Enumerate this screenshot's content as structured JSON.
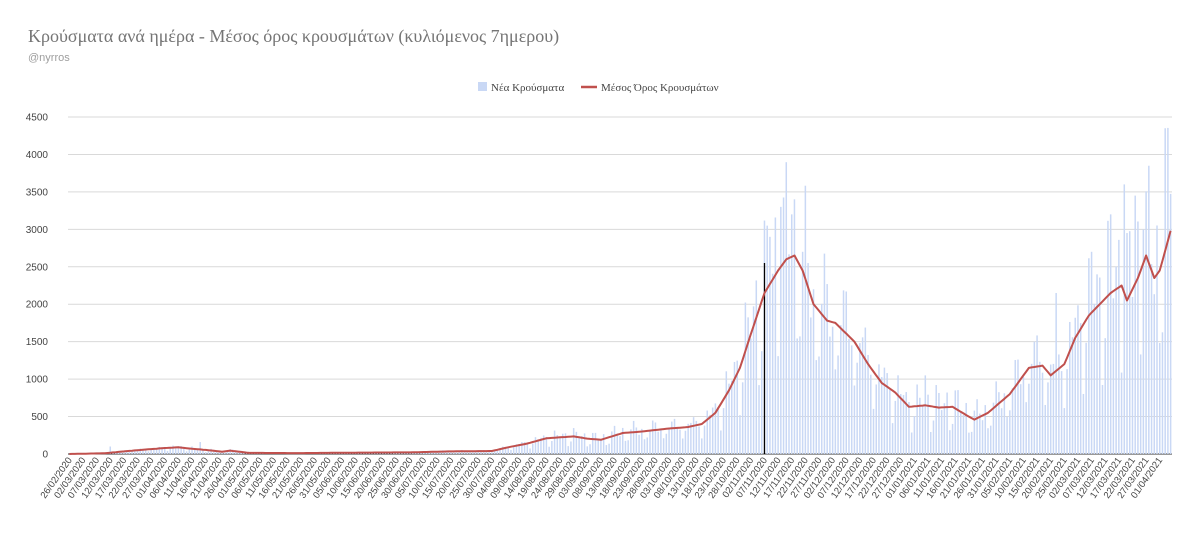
{
  "chart_data": {
    "type": "bar+line",
    "title": "Κρούσματα ανά ημέρα - Μέσος όρος κρουσμάτων (κυλιόμενος 7ημερου)",
    "subtitle": "@nyrros",
    "legend": {
      "placement": "top-center",
      "entries": [
        "Νέα Κρούσματα",
        "Μέσος Όρος Κρουσμάτων"
      ]
    },
    "colors": {
      "bars": "#c9d8f5",
      "line": "#c0504d",
      "grid": "#d9d9d9",
      "marker": "#000000"
    },
    "ylim": [
      0,
      4500
    ],
    "yticks": [
      0,
      500,
      1000,
      1500,
      2000,
      2500,
      3000,
      3500,
      4000,
      4500
    ],
    "date_start": "26/02/2020",
    "date_end": "05/04/2021",
    "xtick_labels": [
      "26/02/2020",
      "02/03/2020",
      "07/03/2020",
      "12/03/2020",
      "17/03/2020",
      "22/03/2020",
      "27/03/2020",
      "01/04/2020",
      "06/04/2020",
      "11/04/2020",
      "16/04/2020",
      "21/04/2020",
      "26/04/2020",
      "01/05/2020",
      "06/05/2020",
      "11/05/2020",
      "16/05/2020",
      "21/05/2020",
      "26/05/2020",
      "31/05/2020",
      "05/06/2020",
      "10/06/2020",
      "15/06/2020",
      "20/06/2020",
      "25/06/2020",
      "30/06/2020",
      "05/07/2020",
      "10/07/2020",
      "15/07/2020",
      "20/07/2020",
      "25/07/2020",
      "30/07/2020",
      "04/08/2020",
      "09/08/2020",
      "14/08/2020",
      "19/08/2020",
      "24/08/2020",
      "29/08/2020",
      "03/09/2020",
      "08/09/2020",
      "13/09/2020",
      "18/09/2020",
      "23/09/2020",
      "28/09/2020",
      "03/10/2020",
      "08/10/2020",
      "13/10/2020",
      "18/10/2020",
      "23/10/2020",
      "28/10/2020",
      "02/11/2020",
      "07/11/2020",
      "12/11/2020",
      "17/11/2020",
      "22/11/2020",
      "27/11/2020",
      "02/12/2020",
      "07/12/2020",
      "12/12/2020",
      "17/12/2020",
      "22/12/2020",
      "27/12/2020",
      "01/01/2021",
      "06/01/2021",
      "11/01/2021",
      "16/01/2021",
      "21/01/2021",
      "26/01/2021",
      "31/01/2021",
      "05/02/2021",
      "10/02/2021",
      "15/02/2021",
      "20/02/2021",
      "25/02/2021",
      "02/03/2021",
      "07/03/2021",
      "12/03/2021",
      "17/03/2021",
      "22/03/2021",
      "27/03/2021",
      "01/04/2021"
    ],
    "marker_line": {
      "date": "07/11/2020",
      "value": 2550
    },
    "average_keypoints": [
      [
        "26/02/2020",
        0
      ],
      [
        "10/03/2020",
        10
      ],
      [
        "17/03/2020",
        35
      ],
      [
        "25/03/2020",
        60
      ],
      [
        "01/04/2020",
        80
      ],
      [
        "06/04/2020",
        90
      ],
      [
        "11/04/2020",
        70
      ],
      [
        "16/04/2020",
        55
      ],
      [
        "22/04/2020",
        30
      ],
      [
        "25/04/2020",
        45
      ],
      [
        "02/05/2020",
        15
      ],
      [
        "20/05/2020",
        12
      ],
      [
        "10/06/2020",
        18
      ],
      [
        "30/06/2020",
        22
      ],
      [
        "15/07/2020",
        35
      ],
      [
        "30/07/2020",
        40
      ],
      [
        "05/08/2020",
        90
      ],
      [
        "12/08/2020",
        140
      ],
      [
        "19/08/2020",
        210
      ],
      [
        "29/08/2020",
        235
      ],
      [
        "03/09/2020",
        205
      ],
      [
        "08/09/2020",
        190
      ],
      [
        "16/09/2020",
        280
      ],
      [
        "23/09/2020",
        300
      ],
      [
        "03/10/2020",
        340
      ],
      [
        "10/10/2020",
        360
      ],
      [
        "15/10/2020",
        400
      ],
      [
        "20/10/2020",
        550
      ],
      [
        "25/10/2020",
        850
      ],
      [
        "29/10/2020",
        1150
      ],
      [
        "02/11/2020",
        1600
      ],
      [
        "07/11/2020",
        2150
      ],
      [
        "12/11/2020",
        2450
      ],
      [
        "15/11/2020",
        2600
      ],
      [
        "18/11/2020",
        2650
      ],
      [
        "21/11/2020",
        2450
      ],
      [
        "25/11/2020",
        2000
      ],
      [
        "30/11/2020",
        1780
      ],
      [
        "03/12/2020",
        1750
      ],
      [
        "10/12/2020",
        1500
      ],
      [
        "15/12/2020",
        1200
      ],
      [
        "20/12/2020",
        950
      ],
      [
        "25/12/2020",
        820
      ],
      [
        "30/12/2020",
        630
      ],
      [
        "05/01/2021",
        650
      ],
      [
        "10/01/2021",
        620
      ],
      [
        "15/01/2021",
        630
      ],
      [
        "20/01/2021",
        520
      ],
      [
        "23/01/2021",
        460
      ],
      [
        "28/01/2021",
        550
      ],
      [
        "05/02/2021",
        800
      ],
      [
        "12/02/2021",
        1150
      ],
      [
        "17/02/2021",
        1180
      ],
      [
        "20/02/2021",
        1050
      ],
      [
        "25/02/2021",
        1200
      ],
      [
        "01/03/2021",
        1550
      ],
      [
        "06/03/2021",
        1850
      ],
      [
        "10/03/2021",
        2000
      ],
      [
        "14/03/2021",
        2150
      ],
      [
        "18/03/2021",
        2250
      ],
      [
        "20/03/2021",
        2050
      ],
      [
        "24/03/2021",
        2350
      ],
      [
        "27/03/2021",
        2650
      ],
      [
        "30/03/2021",
        2350
      ],
      [
        "01/04/2021",
        2450
      ],
      [
        "05/04/2021",
        2980
      ]
    ],
    "bar_peaks": [
      [
        "12/03/2020",
        100
      ],
      [
        "14/04/2020",
        160
      ],
      [
        "09/11/2020",
        2900
      ],
      [
        "13/11/2020",
        3300
      ],
      [
        "17/11/2020",
        3200
      ],
      [
        "21/11/2020",
        2700
      ],
      [
        "25/11/2020",
        2200
      ],
      [
        "02/12/2020",
        1700
      ],
      [
        "05/01/2021",
        1050
      ],
      [
        "14/02/2021",
        1500
      ],
      [
        "22/02/2021",
        2150
      ],
      [
        "07/03/2021",
        2700
      ],
      [
        "14/03/2021",
        3200
      ],
      [
        "19/03/2021",
        3600
      ],
      [
        "23/03/2021",
        3450
      ],
      [
        "26/03/2021",
        3000
      ],
      [
        "03/04/2021",
        4350
      ]
    ]
  }
}
